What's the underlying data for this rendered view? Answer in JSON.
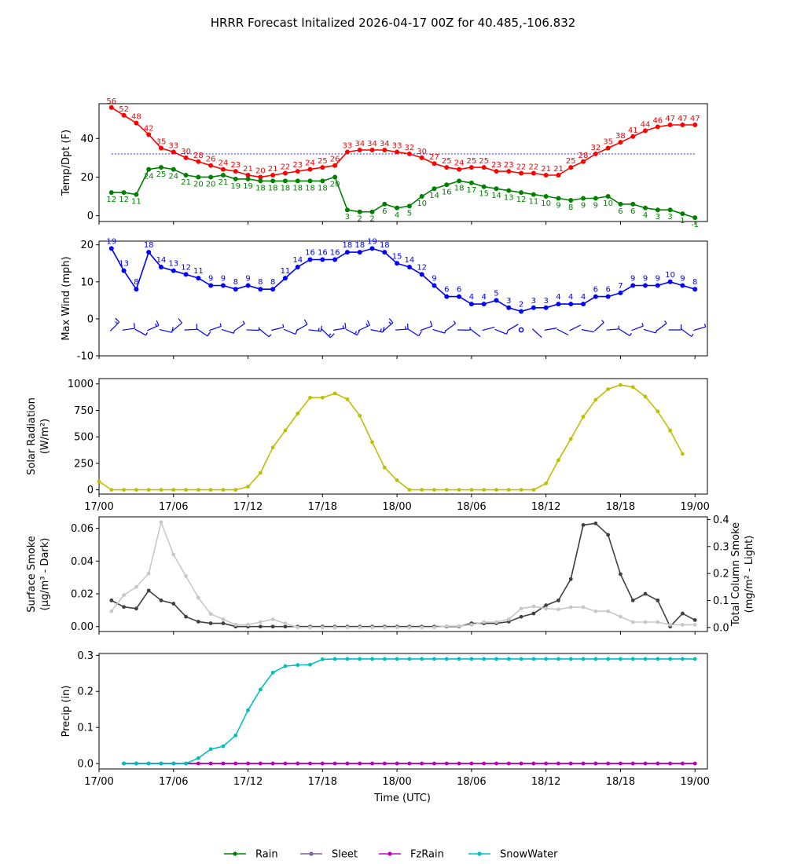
{
  "title": "HRRR Forecast Initalized 2026-04-17 00Z for 40.485,-106.832",
  "xlabel": "Time (UTC)",
  "x_tick_labels": [
    "17/00",
    "17/06",
    "17/12",
    "17/18",
    "18/00",
    "18/06",
    "18/12",
    "18/18",
    "19/00"
  ],
  "x_ticks_hours": [
    0,
    6,
    12,
    18,
    24,
    30,
    36,
    42,
    48
  ],
  "chart_data": [
    {
      "type": "line",
      "title": "Temperature and Dewpoint",
      "ylabel": "Temp/Dpt (F)",
      "ylim": [
        -3,
        58
      ],
      "yticks": [
        0,
        20,
        40
      ],
      "freezing_line": 32,
      "x_hours": [
        1,
        2,
        3,
        4,
        5,
        6,
        7,
        8,
        9,
        10,
        11,
        12,
        13,
        14,
        15,
        16,
        17,
        18,
        19,
        20,
        21,
        22,
        23,
        24,
        25,
        26,
        27,
        28,
        29,
        30,
        31,
        32,
        33,
        34,
        35,
        36,
        37,
        38,
        39,
        40,
        41,
        42,
        43,
        44,
        45,
        46,
        47,
        48
      ],
      "series": [
        {
          "name": "Temperature",
          "color": "#ff0000",
          "values": [
            56,
            52,
            48,
            42,
            35,
            33,
            30,
            28,
            26,
            24,
            23,
            21,
            20,
            21,
            22,
            23,
            24,
            25,
            26,
            33,
            34,
            34,
            34,
            33,
            32,
            30,
            27,
            25,
            24,
            25,
            25,
            23,
            23,
            22,
            22,
            21,
            21,
            25,
            28,
            32,
            35,
            38,
            41,
            44,
            46,
            47,
            47,
            47
          ]
        },
        {
          "name": "Dewpoint",
          "color": "#008000",
          "values": [
            12,
            12,
            11,
            24,
            25,
            24,
            21,
            20,
            20,
            21,
            19,
            19,
            18,
            18,
            18,
            18,
            18,
            18,
            20,
            3,
            2,
            2,
            6,
            4,
            5,
            10,
            14,
            16,
            18,
            17,
            15,
            14,
            13,
            12,
            11,
            10,
            9,
            8,
            9,
            9,
            10,
            6,
            6,
            4,
            3,
            3,
            1,
            -1
          ]
        }
      ]
    },
    {
      "type": "line",
      "title": "Max Wind",
      "ylabel": "Max Wind (mph)",
      "ylim": [
        -10,
        21
      ],
      "yticks": [
        -10,
        0,
        10,
        20
      ],
      "x_hours": [
        1,
        2,
        3,
        4,
        5,
        6,
        7,
        8,
        9,
        10,
        11,
        12,
        13,
        14,
        15,
        16,
        17,
        18,
        19,
        20,
        21,
        22,
        23,
        24,
        25,
        26,
        27,
        28,
        29,
        30,
        31,
        32,
        33,
        34,
        35,
        36,
        37,
        38,
        39,
        40,
        41,
        42,
        43,
        44,
        45,
        46,
        47,
        48
      ],
      "series": [
        {
          "name": "Max Wind",
          "color": "#0000ff",
          "values": [
            19,
            13,
            8,
            18,
            14,
            13,
            12,
            11,
            9,
            9,
            8,
            9,
            8,
            8,
            11,
            14,
            16,
            16,
            16,
            18,
            18,
            19,
            18,
            15,
            14,
            12,
            9,
            6,
            6,
            4,
            4,
            5,
            3,
            2,
            3,
            3,
            4,
            4,
            4,
            6,
            6,
            7,
            9,
            9,
            9,
            10,
            9,
            8
          ]
        }
      ],
      "wind_barb_level": -3
    },
    {
      "type": "line",
      "title": "Solar Radiation",
      "ylabel": "Solar Radiation",
      "ylabel_unit": "(W/m²)",
      "ylim": [
        -40,
        1050
      ],
      "yticks": [
        0,
        250,
        500,
        750,
        1000
      ],
      "x_hours": [
        0,
        1,
        2,
        3,
        4,
        5,
        6,
        7,
        8,
        9,
        10,
        11,
        12,
        13,
        14,
        15,
        16,
        17,
        18,
        19,
        20,
        21,
        22,
        23,
        24,
        25,
        26,
        27,
        28,
        29,
        30,
        31,
        32,
        33,
        34,
        35,
        36,
        37,
        38,
        39,
        40,
        41,
        42,
        43,
        44,
        45,
        46,
        47,
        48
      ],
      "series": [
        {
          "name": "Solar Radiation",
          "color": "#bfbf00",
          "values": [
            80,
            0,
            0,
            0,
            0,
            0,
            0,
            0,
            0,
            0,
            0,
            0,
            30,
            160,
            400,
            560,
            720,
            870,
            870,
            910,
            855,
            700,
            450,
            210,
            90,
            0,
            0,
            0,
            0,
            0,
            0,
            0,
            0,
            0,
            0,
            0,
            60,
            280,
            480,
            690,
            850,
            950,
            990,
            970,
            880,
            740,
            560,
            340
          ]
        }
      ]
    },
    {
      "type": "line",
      "title": "Smoke",
      "ylabel": "Surface Smoke",
      "ylabel_unit": "(µg/m³ - Dark)",
      "ylabel_right": "Total Column Smoke",
      "ylabel_right_unit": "(mg/m² - Light)",
      "ylim": [
        -0.003,
        0.067
      ],
      "yticks": [
        0.0,
        0.02,
        0.04,
        0.06
      ],
      "ylim_right": [
        -0.015,
        0.41
      ],
      "yticks_right": [
        0.0,
        0.1,
        0.2,
        0.3,
        0.4
      ],
      "x_hours": [
        1,
        2,
        3,
        4,
        5,
        6,
        7,
        8,
        9,
        10,
        11,
        12,
        13,
        14,
        15,
        16,
        17,
        18,
        19,
        20,
        21,
        22,
        23,
        24,
        25,
        26,
        27,
        28,
        29,
        30,
        31,
        32,
        33,
        34,
        35,
        36,
        37,
        38,
        39,
        40,
        41,
        42,
        43,
        44,
        45,
        46,
        47,
        48
      ],
      "series": [
        {
          "name": "Surface Smoke",
          "axis": "left",
          "color": "#404040",
          "values": [
            0.016,
            0.012,
            0.011,
            0.022,
            0.016,
            0.014,
            0.006,
            0.003,
            0.002,
            0.002,
            0,
            0,
            0,
            0,
            0,
            0,
            0,
            0,
            0,
            0,
            0,
            0,
            0,
            0,
            0,
            0,
            0,
            0,
            0,
            0.002,
            0.002,
            0.002,
            0.003,
            0.006,
            0.008,
            0.013,
            0.016,
            0.029,
            0.062,
            0.063,
            0.056,
            0.032,
            0.016,
            0.02,
            0.016,
            0,
            0.008,
            0.004
          ]
        },
        {
          "name": "Total Column Smoke",
          "axis": "right",
          "color": "#c8c8c8",
          "values": [
            0.06,
            0.12,
            0.15,
            0.2,
            0.39,
            0.27,
            0.19,
            0.11,
            0.05,
            0.03,
            0.01,
            0.01,
            0.02,
            0.03,
            0.015,
            0,
            0,
            0,
            0,
            0,
            0,
            0,
            0,
            0,
            0,
            0,
            0,
            0.005,
            0.005,
            0.01,
            0.02,
            0.02,
            0.03,
            0.07,
            0.078,
            0.07,
            0.067,
            0.075,
            0.075,
            0.06,
            0.06,
            0.04,
            0.02,
            0.02,
            0.02,
            0.01,
            0.01,
            0.01
          ]
        }
      ]
    },
    {
      "type": "line",
      "title": "Precipitation",
      "ylabel": "Precip (in)",
      "ylim": [
        -0.015,
        0.305
      ],
      "yticks": [
        0.0,
        0.1,
        0.2,
        0.3
      ],
      "x_hours": [
        2,
        3,
        4,
        5,
        6,
        7,
        8,
        9,
        10,
        11,
        12,
        13,
        14,
        15,
        16,
        17,
        18,
        19,
        20,
        21,
        22,
        23,
        24,
        25,
        26,
        27,
        28,
        29,
        30,
        31,
        32,
        33,
        34,
        35,
        36,
        37,
        38,
        39,
        40,
        41,
        42,
        43,
        44,
        45,
        46,
        47,
        48
      ],
      "series": [
        {
          "name": "Rain",
          "color": "#008000",
          "values": [
            0,
            0,
            0,
            0,
            0,
            0,
            0,
            0,
            0,
            0,
            0,
            0,
            0,
            0,
            0,
            0,
            0,
            0,
            0,
            0,
            0,
            0,
            0,
            0,
            0,
            0,
            0,
            0,
            0,
            0,
            0,
            0,
            0,
            0,
            0,
            0,
            0,
            0,
            0,
            0,
            0,
            0,
            0,
            0,
            0,
            0,
            0
          ]
        },
        {
          "name": "Sleet",
          "color": "#8060a0",
          "values": [
            0,
            0,
            0,
            0,
            0,
            0,
            0,
            0,
            0,
            0,
            0,
            0,
            0,
            0,
            0,
            0,
            0,
            0,
            0,
            0,
            0,
            0,
            0,
            0,
            0,
            0,
            0,
            0,
            0,
            0,
            0,
            0,
            0,
            0,
            0,
            0,
            0,
            0,
            0,
            0,
            0,
            0,
            0,
            0,
            0,
            0,
            0
          ]
        },
        {
          "name": "FzRain",
          "color": "#c000c0",
          "values": [
            0,
            0,
            0,
            0,
            0,
            0,
            0,
            0,
            0,
            0,
            0,
            0,
            0,
            0,
            0,
            0,
            0,
            0,
            0,
            0,
            0,
            0,
            0,
            0,
            0,
            0,
            0,
            0,
            0,
            0,
            0,
            0,
            0,
            0,
            0,
            0,
            0,
            0,
            0,
            0,
            0,
            0,
            0,
            0,
            0,
            0,
            0
          ]
        },
        {
          "name": "SnowWater",
          "color": "#00bfbf",
          "values": [
            0,
            0,
            0,
            0,
            0,
            0,
            0.015,
            0.04,
            0.048,
            0.078,
            0.148,
            0.205,
            0.252,
            0.27,
            0.273,
            0.274,
            0.289,
            0.29,
            0.29,
            0.29,
            0.29,
            0.29,
            0.29,
            0.29,
            0.29,
            0.29,
            0.29,
            0.29,
            0.29,
            0.29,
            0.29,
            0.29,
            0.29,
            0.29,
            0.29,
            0.29,
            0.29,
            0.29,
            0.29,
            0.29,
            0.29,
            0.29,
            0.29,
            0.29,
            0.29,
            0.29,
            0.29
          ]
        }
      ]
    }
  ],
  "legend": [
    {
      "name": "Rain",
      "color": "#008000"
    },
    {
      "name": "Sleet",
      "color": "#8060a0"
    },
    {
      "name": "FzRain",
      "color": "#c000c0"
    },
    {
      "name": "SnowWater",
      "color": "#00bfbf"
    }
  ]
}
